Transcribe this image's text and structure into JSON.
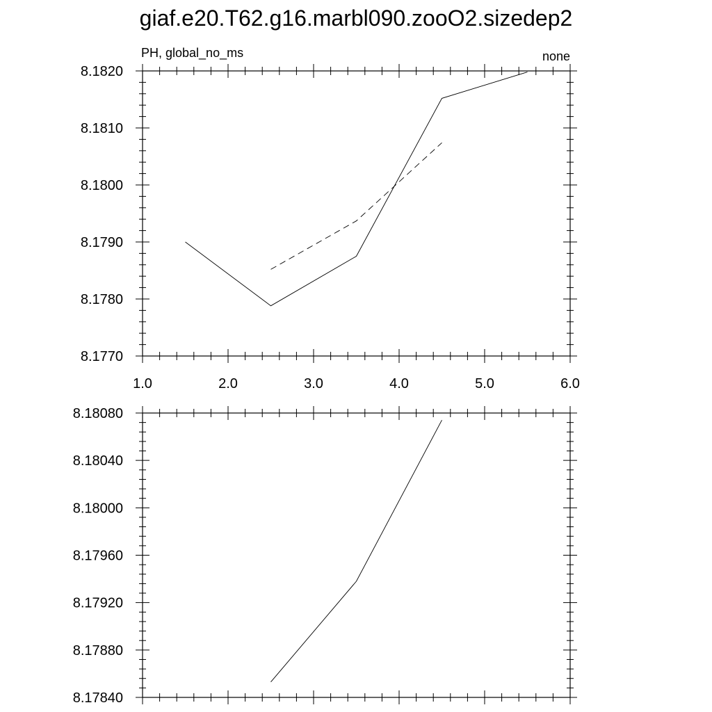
{
  "title": "giaf.e20.T62.g16.marbl090.zooO2.sizedep2",
  "chart_data": [
    {
      "type": "line",
      "left_label": "PH, global_no_ms",
      "right_label": "none",
      "xlim": [
        1.0,
        6.0
      ],
      "ylim": [
        8.177,
        8.182
      ],
      "x_ticks": [
        1.0,
        2.0,
        3.0,
        4.0,
        5.0,
        6.0
      ],
      "x_tick_labels": [
        "1.0",
        "2.0",
        "3.0",
        "4.0",
        "5.0",
        "6.0"
      ],
      "y_ticks": [
        8.177,
        8.178,
        8.179,
        8.18,
        8.181,
        8.182
      ],
      "y_tick_labels": [
        "8.1770",
        "8.1780",
        "8.1790",
        "8.1800",
        "8.1810",
        "8.1820"
      ],
      "grid": false,
      "series": [
        {
          "style": "solid",
          "color": "#000000",
          "x": [
            1.5,
            2.5,
            3.5,
            4.5,
            5.5
          ],
          "y": [
            8.179,
            8.17788,
            8.17875,
            8.18152,
            8.18198
          ]
        },
        {
          "style": "dashed",
          "color": "#000000",
          "x": [
            2.5,
            3.5,
            4.5
          ],
          "y": [
            8.17852,
            8.17937,
            8.18074
          ]
        }
      ]
    },
    {
      "type": "line",
      "xlim": [
        1.0,
        6.0
      ],
      "ylim": [
        8.1784,
        8.1808
      ],
      "x_ticks": [
        1.0,
        2.0,
        3.0,
        4.0,
        5.0,
        6.0
      ],
      "x_tick_labels": [],
      "y_ticks": [
        8.1784,
        8.1788,
        8.1792,
        8.1796,
        8.18,
        8.1804,
        8.1808
      ],
      "y_tick_labels": [
        "8.17840",
        "8.17880",
        "8.17920",
        "8.17960",
        "8.18000",
        "8.18040",
        "8.18080"
      ],
      "grid": false,
      "series": [
        {
          "style": "solid",
          "color": "#000000",
          "x": [
            2.5,
            3.5,
            4.5
          ],
          "y": [
            8.17853,
            8.17938,
            8.18074
          ]
        }
      ]
    }
  ]
}
